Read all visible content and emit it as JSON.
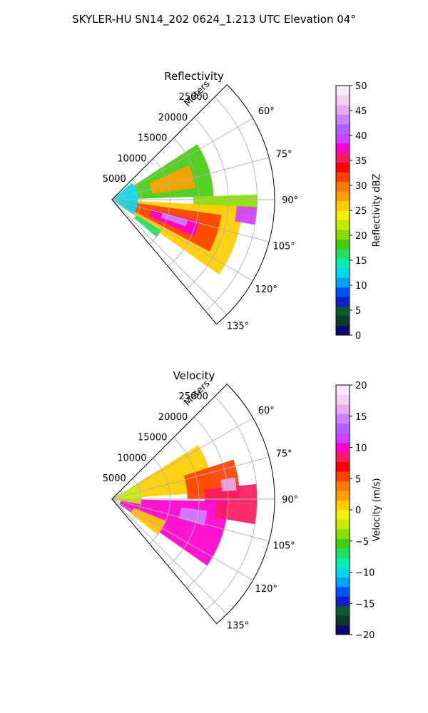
{
  "figure": {
    "title": "SKYLER-HU  SN14_202  0624_1.213 UTC Elevation 04°"
  },
  "colors": {
    "grid": "#b0b0b0",
    "frame": "#000000",
    "background": "#ffffff"
  },
  "chart_data": [
    {
      "type": "heatmap",
      "projection": "polar-sector",
      "title": "Reflectivity",
      "radial_axis_label": "Meters",
      "radial_range": [
        0,
        28000
      ],
      "radial_ticks": [
        5000,
        10000,
        15000,
        20000,
        25000
      ],
      "radial_tick_labels": [
        "5000",
        "10000",
        "15000",
        "20000",
        "25000"
      ],
      "azimuth_range_deg": [
        45,
        140
      ],
      "azimuth_ticks_deg": [
        60,
        75,
        90,
        105,
        120,
        135
      ],
      "azimuth_tick_labels": [
        "60°",
        "75°",
        "90°",
        "105°",
        "120°",
        "135°"
      ],
      "grid": true,
      "colorbar": {
        "label": "Reflectivity dBZ",
        "range": [
          0,
          50
        ],
        "ticks": [
          0,
          5,
          10,
          15,
          20,
          25,
          30,
          35,
          40,
          45,
          50
        ],
        "tick_labels": [
          "0",
          "5",
          "10",
          "15",
          "20",
          "25",
          "30",
          "35",
          "40",
          "45",
          "50"
        ],
        "palette": [
          "#0b0b6e",
          "#0a3a2a",
          "#0a5a30",
          "#1020c8",
          "#0050ff",
          "#00a0ff",
          "#00d8f0",
          "#00f0b0",
          "#20e060",
          "#44cc10",
          "#88dd00",
          "#c8ea00",
          "#f4ee00",
          "#ffcc00",
          "#ffa000",
          "#ff7a00",
          "#ff4000",
          "#ff0000",
          "#ff1a60",
          "#ff00d0",
          "#d040ff",
          "#b060ff",
          "#d080ff",
          "#e8a8f0",
          "#f4d0f4",
          "#fce8fc"
        ]
      },
      "echo_regions": [
        {
          "az_deg": [
            57,
            88
          ],
          "range_m": [
            4500,
            17500
          ],
          "value": 18
        },
        {
          "az_deg": [
            66,
            82
          ],
          "range_m": [
            7000,
            14500
          ],
          "value": 27
        },
        {
          "az_deg": [
            88,
            96
          ],
          "range_m": [
            14000,
            25000
          ],
          "value": 21
        },
        {
          "az_deg": [
            93,
            125
          ],
          "range_m": [
            1000,
            22500
          ],
          "value": 25
        },
        {
          "az_deg": [
            98,
            118
          ],
          "range_m": [
            3000,
            19000
          ],
          "value": 32
        },
        {
          "az_deg": [
            104,
            114
          ],
          "range_m": [
            7000,
            15500
          ],
          "value": 38
        },
        {
          "az_deg": [
            105,
            110
          ],
          "range_m": [
            9000,
            13500
          ],
          "value": 44
        },
        {
          "az_deg": [
            93,
            100
          ],
          "range_m": [
            21500,
            25000
          ],
          "value": 40
        },
        {
          "az_deg": [
            122,
            130
          ],
          "range_m": [
            5000,
            10000
          ],
          "value": 16
        },
        {
          "az_deg": [
            50,
            125
          ],
          "range_m": [
            0,
            4500
          ],
          "value": 12
        }
      ]
    },
    {
      "type": "heatmap",
      "projection": "polar-sector",
      "title": "Velocity",
      "radial_axis_label": "Meters",
      "radial_range": [
        0,
        28000
      ],
      "radial_ticks": [
        5000,
        10000,
        15000,
        20000,
        25000
      ],
      "radial_tick_labels": [
        "5000",
        "10000",
        "15000",
        "20000",
        "25000"
      ],
      "azimuth_range_deg": [
        45,
        140
      ],
      "azimuth_ticks_deg": [
        60,
        75,
        90,
        105,
        120,
        135
      ],
      "azimuth_tick_labels": [
        "60°",
        "75°",
        "90°",
        "105°",
        "120°",
        "135°"
      ],
      "grid": true,
      "colorbar": {
        "label": "Velocity (m/s)",
        "range": [
          -20,
          20
        ],
        "ticks": [
          -20,
          -15,
          -10,
          -5,
          0,
          5,
          10,
          15,
          20
        ],
        "tick_labels": [
          "−20",
          "−15",
          "−10",
          "−5",
          "0",
          "5",
          "10",
          "15",
          "20"
        ],
        "palette": [
          "#0b0b6e",
          "#0a3a2a",
          "#0a5a30",
          "#1020c8",
          "#0050ff",
          "#00a0ff",
          "#00d8f0",
          "#00f0b0",
          "#20e060",
          "#44cc10",
          "#88dd00",
          "#c8ea00",
          "#f4ee00",
          "#ffcc00",
          "#ffa000",
          "#ff7a00",
          "#ff4000",
          "#ff0000",
          "#ff1a60",
          "#ff00d0",
          "#d040ff",
          "#b060ff",
          "#d080ff",
          "#e8a8f0",
          "#f4d0f4",
          "#fce8fc"
        ]
      },
      "echo_regions": [
        {
          "az_deg": [
            58,
            86
          ],
          "range_m": [
            5000,
            17500
          ],
          "value": 1
        },
        {
          "az_deg": [
            72,
            90
          ],
          "range_m": [
            13000,
            22000
          ],
          "value": 6
        },
        {
          "az_deg": [
            84,
            92
          ],
          "range_m": [
            16000,
            25000
          ],
          "value": 9
        },
        {
          "az_deg": [
            80,
            86
          ],
          "range_m": [
            19000,
            21500
          ],
          "value": 16
        },
        {
          "az_deg": [
            91,
            125
          ],
          "range_m": [
            1500,
            20000
          ],
          "value": 10
        },
        {
          "az_deg": [
            92,
            100
          ],
          "range_m": [
            18000,
            25000
          ],
          "value": 8
        },
        {
          "az_deg": [
            97,
            106
          ],
          "range_m": [
            12000,
            16500
          ],
          "value": 15
        },
        {
          "az_deg": [
            112,
            128
          ],
          "range_m": [
            4000,
            10000
          ],
          "value": 1
        },
        {
          "az_deg": [
            60,
            100
          ],
          "range_m": [
            0,
            5000
          ],
          "value": -2
        }
      ]
    }
  ]
}
